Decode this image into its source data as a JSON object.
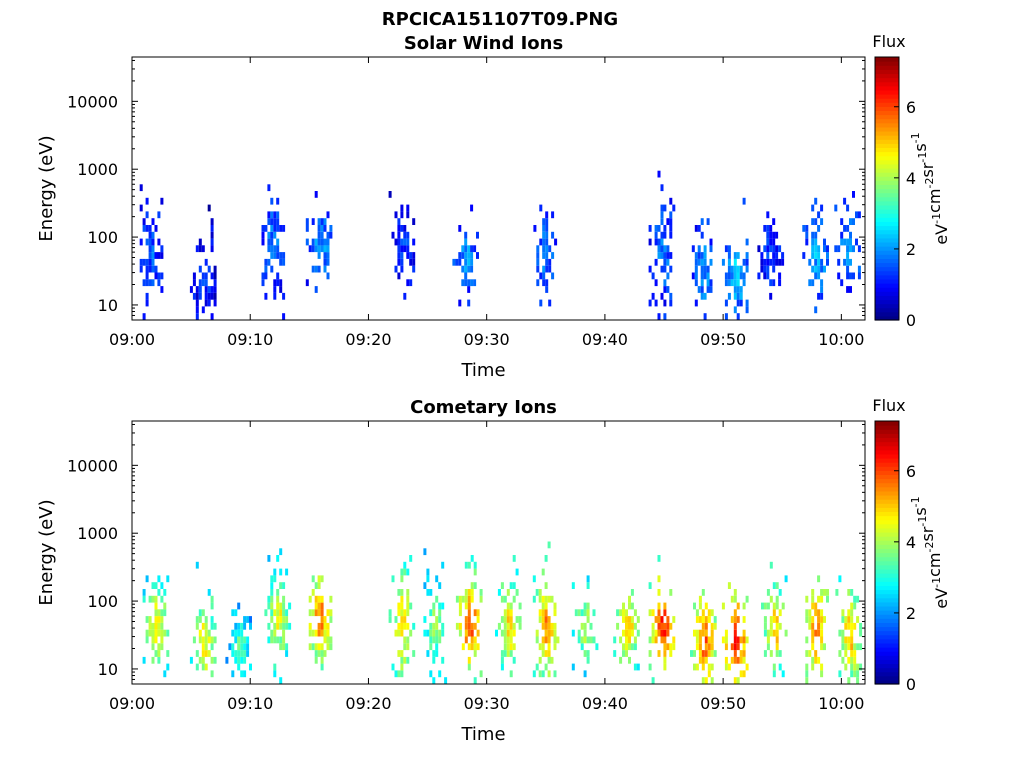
{
  "figure": {
    "title": "RPCICA151107T09.PNG"
  },
  "chart_data": [
    {
      "type": "heatmap",
      "title": "Solar Wind Ions",
      "xlabel": "Time",
      "ylabel": "Energy (eV)",
      "x_ticks": [
        "09:00",
        "09:10",
        "09:20",
        "09:30",
        "09:40",
        "09:50",
        "10:00"
      ],
      "x_range_minutes": [
        0,
        62
      ],
      "y_scale": "log",
      "y_ticks": [
        10,
        100,
        1000,
        10000
      ],
      "y_tick_labels": [
        "10",
        "100",
        "1000",
        "10000"
      ],
      "y_range": [
        6,
        45000
      ],
      "colorbar": {
        "label": "Flux",
        "unit_label": "eV-1cm-2sr-1s-1",
        "range": [
          0,
          7.4
        ],
        "ticks": [
          0,
          2,
          4,
          6
        ],
        "colormap": "jet"
      },
      "bursts": [
        {
          "t": 1.5,
          "e_center": 50,
          "spread": 0.5,
          "level": 1.6
        },
        {
          "t": 6.0,
          "e_center": 20,
          "spread": 0.6,
          "level": 1.2
        },
        {
          "t": 11.8,
          "e_center": 80,
          "spread": 0.5,
          "level": 1.8
        },
        {
          "t": 15.8,
          "e_center": 70,
          "spread": 0.4,
          "level": 2.2
        },
        {
          "t": 22.8,
          "e_center": 70,
          "spread": 0.5,
          "level": 1.4
        },
        {
          "t": 28.2,
          "e_center": 50,
          "spread": 0.4,
          "level": 2.0
        },
        {
          "t": 34.8,
          "e_center": 60,
          "spread": 0.5,
          "level": 1.8
        },
        {
          "t": 44.8,
          "e_center": 50,
          "spread": 0.6,
          "level": 1.8
        },
        {
          "t": 48.2,
          "e_center": 30,
          "spread": 0.5,
          "level": 2.0
        },
        {
          "t": 51.0,
          "e_center": 30,
          "spread": 0.5,
          "level": 2.4
        },
        {
          "t": 54.0,
          "e_center": 50,
          "spread": 0.4,
          "level": 1.4
        },
        {
          "t": 57.8,
          "e_center": 50,
          "spread": 0.5,
          "level": 2.2
        },
        {
          "t": 60.5,
          "e_center": 60,
          "spread": 0.5,
          "level": 2.0
        }
      ]
    },
    {
      "type": "heatmap",
      "title": "Cometary Ions",
      "xlabel": "Time",
      "ylabel": "Energy (eV)",
      "x_ticks": [
        "09:00",
        "09:10",
        "09:20",
        "09:30",
        "09:40",
        "09:50",
        "10:00"
      ],
      "x_range_minutes": [
        0,
        62
      ],
      "y_scale": "log",
      "y_ticks": [
        10,
        100,
        1000,
        10000
      ],
      "y_tick_labels": [
        "10",
        "100",
        "1000",
        "10000"
      ],
      "y_range": [
        6,
        45000
      ],
      "colorbar": {
        "label": "Flux",
        "unit_label": "eV-1cm-2sr-1s-1",
        "range": [
          0,
          7.4
        ],
        "ticks": [
          0,
          2,
          4,
          6
        ],
        "colormap": "jet"
      },
      "bursts": [
        {
          "t": 2.0,
          "e_center": 40,
          "spread": 0.55,
          "level": 4.8
        },
        {
          "t": 6.0,
          "e_center": 25,
          "spread": 0.6,
          "level": 4.8
        },
        {
          "t": 9.0,
          "e_center": 20,
          "spread": 0.4,
          "level": 3.5
        },
        {
          "t": 12.3,
          "e_center": 60,
          "spread": 0.6,
          "level": 4.6
        },
        {
          "t": 15.8,
          "e_center": 55,
          "spread": 0.5,
          "level": 5.8
        },
        {
          "t": 22.8,
          "e_center": 45,
          "spread": 0.65,
          "level": 5.0
        },
        {
          "t": 25.5,
          "e_center": 45,
          "spread": 0.5,
          "level": 4.0
        },
        {
          "t": 28.5,
          "e_center": 45,
          "spread": 0.5,
          "level": 6.2
        },
        {
          "t": 31.8,
          "e_center": 45,
          "spread": 0.55,
          "level": 5.0
        },
        {
          "t": 35.0,
          "e_center": 45,
          "spread": 0.6,
          "level": 5.6
        },
        {
          "t": 38.3,
          "e_center": 40,
          "spread": 0.45,
          "level": 4.4
        },
        {
          "t": 41.8,
          "e_center": 40,
          "spread": 0.45,
          "level": 5.2
        },
        {
          "t": 44.8,
          "e_center": 40,
          "spread": 0.55,
          "level": 6.4
        },
        {
          "t": 48.3,
          "e_center": 25,
          "spread": 0.55,
          "level": 6.0
        },
        {
          "t": 51.0,
          "e_center": 25,
          "spread": 0.55,
          "level": 6.6
        },
        {
          "t": 54.3,
          "e_center": 40,
          "spread": 0.5,
          "level": 5.2
        },
        {
          "t": 57.8,
          "e_center": 35,
          "spread": 0.55,
          "level": 5.8
        },
        {
          "t": 60.6,
          "e_center": 30,
          "spread": 0.55,
          "level": 5.2
        }
      ]
    }
  ]
}
